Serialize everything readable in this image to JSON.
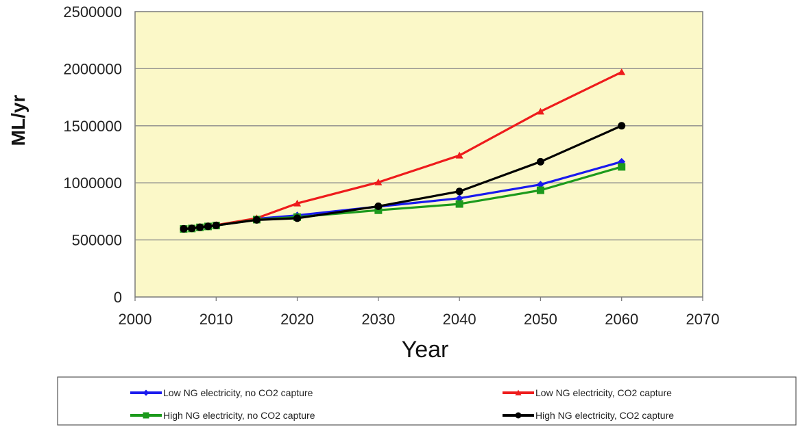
{
  "chart_data": {
    "type": "line",
    "title": "",
    "xlabel": "Year",
    "ylabel": "ML/yr",
    "xlim": [
      2000,
      2070
    ],
    "ylim": [
      0,
      2500000
    ],
    "x_ticks": [
      "2000",
      "2010",
      "2020",
      "2030",
      "2040",
      "2050",
      "2060",
      "2070"
    ],
    "y_ticks": [
      "0",
      "500000",
      "1000000",
      "1500000",
      "2000000",
      "2500000"
    ],
    "grid": "horizontal",
    "legend_position": "bottom",
    "colors": {
      "plot_background": "#fbf8c8",
      "grid": "#8a8a8a"
    },
    "series": [
      {
        "name": "Low NG electricity, no CO2 capture",
        "color": "#1a1aee",
        "marker": "diamond",
        "x": [
          2006,
          2007,
          2008,
          2009,
          2010,
          2015,
          2020,
          2030,
          2040,
          2050,
          2060
        ],
        "y": [
          598000,
          601000,
          612000,
          620000,
          628000,
          685000,
          715000,
          792000,
          865000,
          985000,
          1185000
        ]
      },
      {
        "name": "Low NG electricity, CO2 capture",
        "color": "#ee1c1c",
        "marker": "triangle",
        "x": [
          2006,
          2007,
          2008,
          2009,
          2010,
          2015,
          2020,
          2030,
          2040,
          2050,
          2060
        ],
        "y": [
          598000,
          602000,
          614000,
          622000,
          630000,
          690000,
          820000,
          1005000,
          1240000,
          1625000,
          1970000
        ]
      },
      {
        "name": "High NG electricity, no CO2 capture",
        "color": "#1c9a1c",
        "marker": "square",
        "x": [
          2006,
          2007,
          2008,
          2009,
          2010,
          2015,
          2020,
          2030,
          2040,
          2050,
          2060
        ],
        "y": [
          596000,
          600000,
          610000,
          618000,
          626000,
          678000,
          700000,
          760000,
          815000,
          935000,
          1140000
        ]
      },
      {
        "name": "High NG electricity, CO2 capture",
        "color": "#000000",
        "marker": "circle",
        "x": [
          2006,
          2007,
          2008,
          2009,
          2010,
          2015,
          2020,
          2030,
          2040,
          2050,
          2060
        ],
        "y": [
          597000,
          601000,
          611000,
          619000,
          627000,
          675000,
          690000,
          795000,
          925000,
          1185000,
          1500000
        ]
      }
    ]
  }
}
